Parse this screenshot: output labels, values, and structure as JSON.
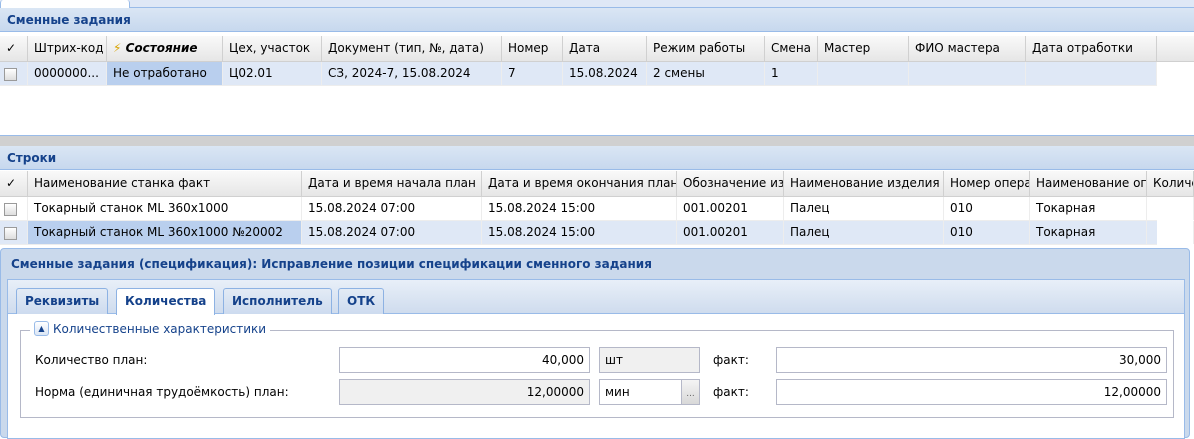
{
  "panel1": {
    "title": "Сменные задания",
    "columns": [
      "✓",
      "Штрих-код",
      "Состояние",
      "Цех, участок",
      "Документ (тип, №, дата)",
      "Номер",
      "Дата",
      "Режим работы",
      "Смена",
      "Мастер",
      "ФИО мастера",
      "Дата отработки"
    ],
    "rows": [
      [
        "",
        "0000000...",
        "Не отработано",
        "Ц02.01",
        "СЗ, 2024-7, 15.08.2024",
        "7",
        "15.08.2024",
        "2 смены",
        "1",
        "",
        "",
        ""
      ]
    ]
  },
  "panel2": {
    "title": "Строки",
    "columns": [
      "✓",
      "Наименование станка факт",
      "Дата и время начала план",
      "Дата и время окончания план...",
      "Обозначение изд",
      "Наименование изделия",
      "Номер опера",
      "Наименование опе",
      "Количе"
    ],
    "rows": [
      [
        "",
        "Токарный станок ML 360x1000",
        "15.08.2024 07:00",
        "15.08.2024 15:00",
        "001.00201",
        "Палец",
        "010",
        "Токарная",
        ""
      ],
      [
        "",
        "Токарный станок ML 360x1000 №20002",
        "15.08.2024 07:00",
        "15.08.2024 15:00",
        "001.00201",
        "Палец",
        "010",
        "Токарная",
        ""
      ]
    ]
  },
  "dialog": {
    "title": "Сменные задания (спецификация): Исправление позиции спецификации сменного задания",
    "tabs": [
      "Реквизиты",
      "Количества",
      "Исполнитель",
      "ОТК"
    ],
    "active_tab": "Количества",
    "fieldset": "Количественные характеристики",
    "fields": [
      {
        "label": "Количество план:",
        "plan": "40,000",
        "unit": "шт",
        "fact_label": "факт:",
        "fact": "30,000"
      },
      {
        "label": "Норма (единичная трудоёмкость) план:",
        "plan": "12,00000",
        "unit": "мин",
        "fact_label": "факт:",
        "fact": "12,00000"
      }
    ]
  }
}
